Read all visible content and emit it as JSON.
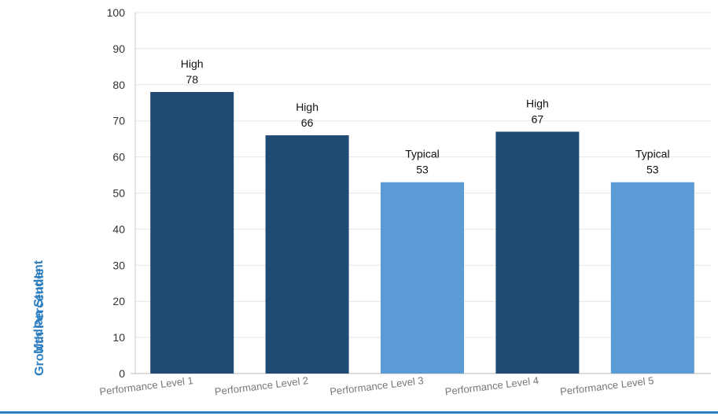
{
  "chart_data": {
    "type": "bar",
    "categories": [
      "Performance Level 1",
      "Performance Level 2",
      "Performance Level 3",
      "Performance Level 4",
      "Performance Level 5"
    ],
    "values": [
      78,
      66,
      53,
      67,
      53
    ],
    "bar_labels": [
      "High",
      "High",
      "Typical",
      "High",
      "Typical"
    ],
    "ylabel_lines": [
      "Median Student",
      "Growth Percentile"
    ],
    "ylim": [
      0,
      100
    ],
    "yticks": [
      0,
      10,
      20,
      30,
      40,
      50,
      60,
      70,
      80,
      90,
      100
    ],
    "grid": true,
    "colors": {
      "High": "#1f4a73",
      "Typical": "#5b9bd5",
      "axis_title": "#2f7fc1",
      "grid": "#e6e6e6",
      "tick_text": "#333333",
      "category_text": "#777777"
    }
  }
}
